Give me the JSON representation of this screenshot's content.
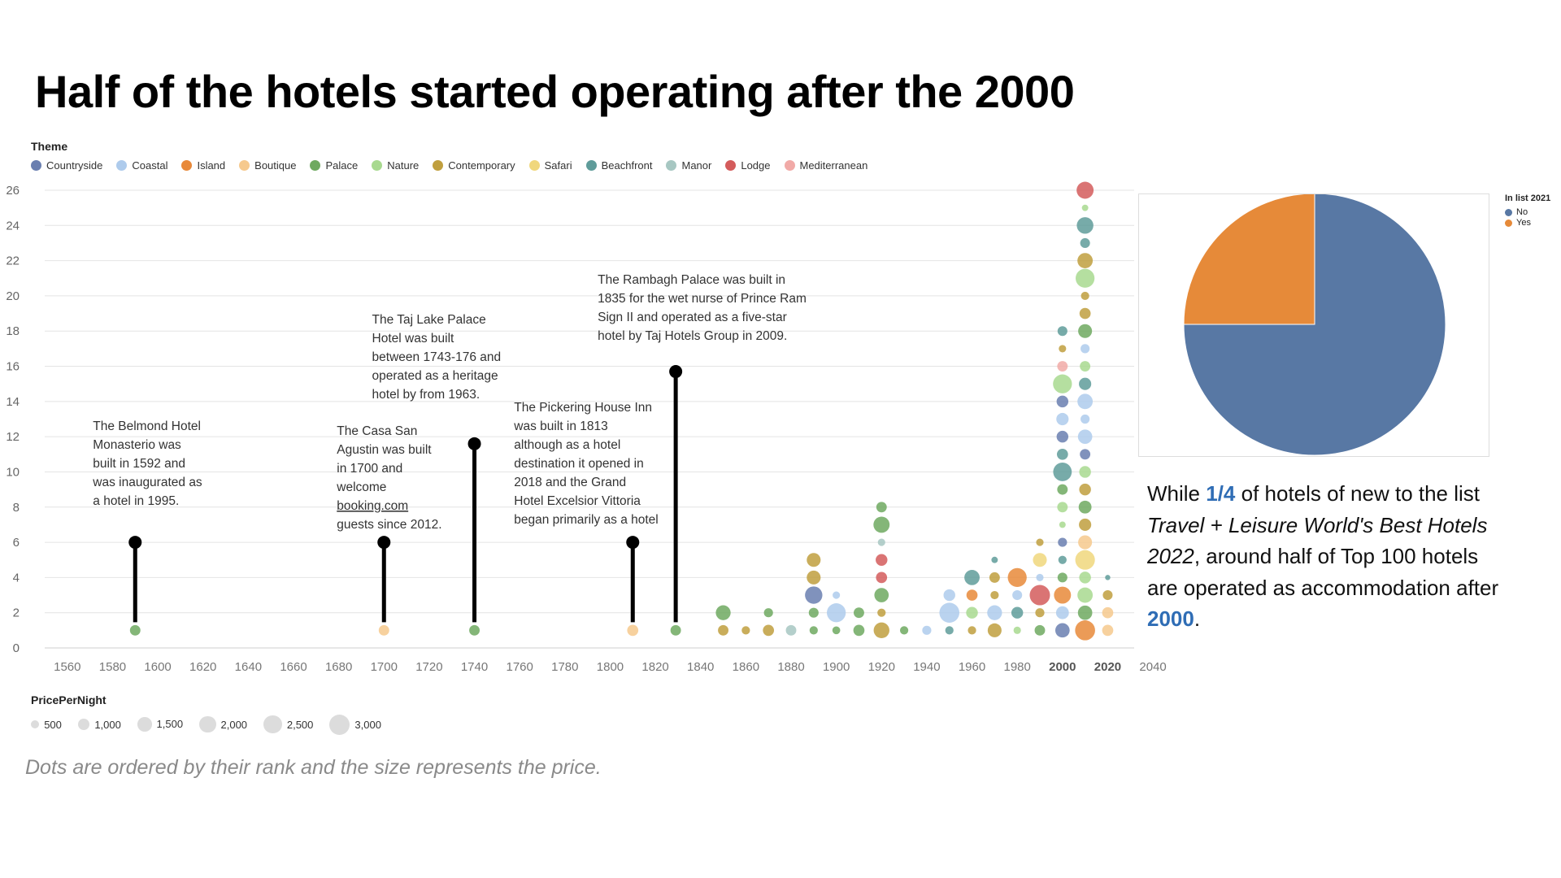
{
  "title": "Half of the hotels started operating after the 2000",
  "theme_legend": {
    "title": "Theme",
    "items": [
      {
        "label": "Countryside",
        "color": "#6a7fb0"
      },
      {
        "label": "Coastal",
        "color": "#aecbec"
      },
      {
        "label": "Island",
        "color": "#e8893a"
      },
      {
        "label": "Boutique",
        "color": "#f6c98d"
      },
      {
        "label": "Palace",
        "color": "#6fa960"
      },
      {
        "label": "Nature",
        "color": "#a8d98f"
      },
      {
        "label": "Contemporary",
        "color": "#c09f3e"
      },
      {
        "label": "Safari",
        "color": "#f0d77d"
      },
      {
        "label": "Beachfront",
        "color": "#5f9c9a"
      },
      {
        "label": "Manor",
        "color": "#a7c7c2"
      },
      {
        "label": "Lodge",
        "color": "#d45c5c"
      },
      {
        "label": "Mediterranean",
        "color": "#f1aaa7"
      }
    ]
  },
  "size_legend": {
    "title": "PricePerNight",
    "items": [
      "500",
      "1,000",
      "1,500",
      "2,000",
      "2,500",
      "3,000"
    ]
  },
  "chart_data": {
    "type": "scatter",
    "xlabel": "",
    "ylabel": "",
    "xlim": [
      1550,
      2045
    ],
    "ylim": [
      0,
      26
    ],
    "x_ticks": [
      "1560",
      "1580",
      "1600",
      "1620",
      "1640",
      "1660",
      "1680",
      "1700",
      "1720",
      "1740",
      "1760",
      "1780",
      "1800",
      "1820",
      "1840",
      "1860",
      "1880",
      "1900",
      "1920",
      "1940",
      "1960",
      "1980",
      "2000",
      "2020",
      "2040"
    ],
    "bold_ticks": [
      "2000",
      "2020"
    ],
    "y_ticks": [
      "0",
      "2",
      "4",
      "6",
      "8",
      "10",
      "12",
      "14",
      "16",
      "18",
      "20",
      "22",
      "24",
      "26"
    ],
    "grid": true,
    "annotations": [
      {
        "x": 1590,
        "y": 6,
        "lines": [
          "The Belmond Hotel",
          "Monasterio was",
          "built in 1592 and",
          "was inaugurated as",
          "a hotel in 1995."
        ]
      },
      {
        "x": 1700,
        "y": 6,
        "lines": [
          "The Casa San",
          "Agustin was built",
          "in 1700 and",
          "welcome",
          "booking.com",
          "guests since 2012."
        ],
        "underline_line": 4
      },
      {
        "x": 1740,
        "y": 11.6,
        "lines": [
          "The Taj Lake Palace",
          "Hotel was built",
          "between 1743-176 and",
          "operated as a heritage",
          "hotel by from 1963."
        ]
      },
      {
        "x": 1810,
        "y": 6,
        "lines": [
          "The Pickering House Inn",
          "was built in 1813",
          "although as a hotel",
          "destination it opened in",
          "2018 and the Grand",
          "Hotel Excelsior Vittoria",
          "began primarily as a hotel"
        ]
      },
      {
        "x": 1829,
        "y": 15.7,
        "lines": [
          "The Rambagh Palace was built in",
          "1835 for the wet nurse of Prince Ram",
          "Sign II and operated as a five-star",
          "hotel by Taj Hotels Group in 2009."
        ]
      }
    ],
    "points": [
      {
        "x": 1590,
        "y": 1,
        "theme": "Palace",
        "price": 800
      },
      {
        "x": 1700,
        "y": 1,
        "theme": "Boutique",
        "price": 800
      },
      {
        "x": 1740,
        "y": 1,
        "theme": "Palace",
        "price": 800
      },
      {
        "x": 1810,
        "y": 1,
        "theme": "Boutique",
        "price": 900
      },
      {
        "x": 1829,
        "y": 1,
        "theme": "Palace",
        "price": 800
      },
      {
        "x": 1850,
        "y": 1,
        "theme": "Contemporary",
        "price": 800
      },
      {
        "x": 1850,
        "y": 2,
        "theme": "Palace",
        "price": 1600
      },
      {
        "x": 1860,
        "y": 1,
        "theme": "Contemporary",
        "price": 500
      },
      {
        "x": 1870,
        "y": 1,
        "theme": "Contemporary",
        "price": 900
      },
      {
        "x": 1870,
        "y": 2,
        "theme": "Palace",
        "price": 600
      },
      {
        "x": 1880,
        "y": 1,
        "theme": "Manor",
        "price": 800
      },
      {
        "x": 1890,
        "y": 1,
        "theme": "Palace",
        "price": 500
      },
      {
        "x": 1890,
        "y": 2,
        "theme": "Palace",
        "price": 700
      },
      {
        "x": 1890,
        "y": 3,
        "theme": "Countryside",
        "price": 2200
      },
      {
        "x": 1890,
        "y": 4,
        "theme": "Contemporary",
        "price": 1400
      },
      {
        "x": 1890,
        "y": 5,
        "theme": "Contemporary",
        "price": 1400
      },
      {
        "x": 1900,
        "y": 1,
        "theme": "Palace",
        "price": 450
      },
      {
        "x": 1900,
        "y": 2,
        "theme": "Coastal",
        "price": 2600
      },
      {
        "x": 1900,
        "y": 3,
        "theme": "Coastal",
        "price": 400
      },
      {
        "x": 1910,
        "y": 1,
        "theme": "Palace",
        "price": 900
      },
      {
        "x": 1910,
        "y": 2,
        "theme": "Palace",
        "price": 800
      },
      {
        "x": 1920,
        "y": 1,
        "theme": "Contemporary",
        "price": 1800
      },
      {
        "x": 1920,
        "y": 2,
        "theme": "Contemporary",
        "price": 500
      },
      {
        "x": 1920,
        "y": 3,
        "theme": "Palace",
        "price": 1500
      },
      {
        "x": 1920,
        "y": 4,
        "theme": "Lodge",
        "price": 900
      },
      {
        "x": 1920,
        "y": 5,
        "theme": "Lodge",
        "price": 1000
      },
      {
        "x": 1920,
        "y": 6,
        "theme": "Manor",
        "price": 400
      },
      {
        "x": 1920,
        "y": 7,
        "theme": "Palace",
        "price": 1900
      },
      {
        "x": 1920,
        "y": 8,
        "theme": "Palace",
        "price": 800
      },
      {
        "x": 1930,
        "y": 1,
        "theme": "Palace",
        "price": 500
      },
      {
        "x": 1940,
        "y": 1,
        "theme": "Coastal",
        "price": 600
      },
      {
        "x": 1950,
        "y": 1,
        "theme": "Beachfront",
        "price": 500
      },
      {
        "x": 1950,
        "y": 2,
        "theme": "Coastal",
        "price": 2900
      },
      {
        "x": 1950,
        "y": 3,
        "theme": "Coastal",
        "price": 1000
      },
      {
        "x": 1960,
        "y": 1,
        "theme": "Contemporary",
        "price": 500
      },
      {
        "x": 1960,
        "y": 2,
        "theme": "Nature",
        "price": 1000
      },
      {
        "x": 1960,
        "y": 3,
        "theme": "Island",
        "price": 900
      },
      {
        "x": 1960,
        "y": 4,
        "theme": "Beachfront",
        "price": 1700
      },
      {
        "x": 1970,
        "y": 1,
        "theme": "Contemporary",
        "price": 1400
      },
      {
        "x": 1970,
        "y": 2,
        "theme": "Coastal",
        "price": 1600
      },
      {
        "x": 1970,
        "y": 3,
        "theme": "Contemporary",
        "price": 500
      },
      {
        "x": 1970,
        "y": 4,
        "theme": "Contemporary",
        "price": 800
      },
      {
        "x": 1970,
        "y": 5,
        "theme": "Beachfront",
        "price": 300
      },
      {
        "x": 1980,
        "y": 1,
        "theme": "Nature",
        "price": 400
      },
      {
        "x": 1980,
        "y": 2,
        "theme": "Beachfront",
        "price": 1000
      },
      {
        "x": 1980,
        "y": 3,
        "theme": "Coastal",
        "price": 700
      },
      {
        "x": 1980,
        "y": 4,
        "theme": "Island",
        "price": 2600
      },
      {
        "x": 1990,
        "y": 1,
        "theme": "Palace",
        "price": 800
      },
      {
        "x": 1990,
        "y": 2,
        "theme": "Contemporary",
        "price": 600
      },
      {
        "x": 1990,
        "y": 3,
        "theme": "Lodge",
        "price": 3000
      },
      {
        "x": 1990,
        "y": 4,
        "theme": "Coastal",
        "price": 400
      },
      {
        "x": 1990,
        "y": 5,
        "theme": "Safari",
        "price": 1400
      },
      {
        "x": 1990,
        "y": 6,
        "theme": "Contemporary",
        "price": 400
      },
      {
        "x": 2000,
        "y": 1,
        "theme": "Countryside",
        "price": 1500
      },
      {
        "x": 2000,
        "y": 2,
        "theme": "Coastal",
        "price": 1200
      },
      {
        "x": 2000,
        "y": 3,
        "theme": "Island",
        "price": 2100
      },
      {
        "x": 2000,
        "y": 4,
        "theme": "Palace",
        "price": 700
      },
      {
        "x": 2000,
        "y": 5,
        "theme": "Beachfront",
        "price": 500
      },
      {
        "x": 2000,
        "y": 6,
        "theme": "Countryside",
        "price": 600
      },
      {
        "x": 2000,
        "y": 7,
        "theme": "Nature",
        "price": 300
      },
      {
        "x": 2000,
        "y": 8,
        "theme": "Nature",
        "price": 800
      },
      {
        "x": 2000,
        "y": 9,
        "theme": "Palace",
        "price": 800
      },
      {
        "x": 2000,
        "y": 10,
        "theme": "Beachfront",
        "price": 2500
      },
      {
        "x": 2000,
        "y": 11,
        "theme": "Beachfront",
        "price": 900
      },
      {
        "x": 2000,
        "y": 12,
        "theme": "Countryside",
        "price": 1000
      },
      {
        "x": 2000,
        "y": 13,
        "theme": "Coastal",
        "price": 1100
      },
      {
        "x": 2000,
        "y": 14,
        "theme": "Countryside",
        "price": 1000
      },
      {
        "x": 2000,
        "y": 15,
        "theme": "Nature",
        "price": 2600
      },
      {
        "x": 2000,
        "y": 16,
        "theme": "Mediterranean",
        "price": 800
      },
      {
        "x": 2000,
        "y": 17,
        "theme": "Contemporary",
        "price": 400
      },
      {
        "x": 2000,
        "y": 18,
        "theme": "Beachfront",
        "price": 700
      },
      {
        "x": 2010,
        "y": 1,
        "theme": "Island",
        "price": 2900
      },
      {
        "x": 2010,
        "y": 2,
        "theme": "Palace",
        "price": 1500
      },
      {
        "x": 2010,
        "y": 3,
        "theme": "Nature",
        "price": 1700
      },
      {
        "x": 2010,
        "y": 4,
        "theme": "Nature",
        "price": 1000
      },
      {
        "x": 2010,
        "y": 5,
        "theme": "Safari",
        "price": 2800
      },
      {
        "x": 2010,
        "y": 6,
        "theme": "Boutique",
        "price": 1400
      },
      {
        "x": 2010,
        "y": 7,
        "theme": "Contemporary",
        "price": 1100
      },
      {
        "x": 2010,
        "y": 8,
        "theme": "Palace",
        "price": 1200
      },
      {
        "x": 2010,
        "y": 9,
        "theme": "Contemporary",
        "price": 1000
      },
      {
        "x": 2010,
        "y": 10,
        "theme": "Nature",
        "price": 1000
      },
      {
        "x": 2010,
        "y": 11,
        "theme": "Countryside",
        "price": 800
      },
      {
        "x": 2010,
        "y": 12,
        "theme": "Coastal",
        "price": 1500
      },
      {
        "x": 2010,
        "y": 13,
        "theme": "Coastal",
        "price": 600
      },
      {
        "x": 2010,
        "y": 14,
        "theme": "Coastal",
        "price": 1700
      },
      {
        "x": 2010,
        "y": 15,
        "theme": "Beachfront",
        "price": 1100
      },
      {
        "x": 2010,
        "y": 16,
        "theme": "Nature",
        "price": 800
      },
      {
        "x": 2010,
        "y": 17,
        "theme": "Coastal",
        "price": 600
      },
      {
        "x": 2010,
        "y": 18,
        "theme": "Palace",
        "price": 1400
      },
      {
        "x": 2010,
        "y": 19,
        "theme": "Contemporary",
        "price": 900
      },
      {
        "x": 2010,
        "y": 20,
        "theme": "Contemporary",
        "price": 500
      },
      {
        "x": 2010,
        "y": 21,
        "theme": "Nature",
        "price": 2600
      },
      {
        "x": 2010,
        "y": 22,
        "theme": "Contemporary",
        "price": 1700
      },
      {
        "x": 2010,
        "y": 23,
        "theme": "Beachfront",
        "price": 700
      },
      {
        "x": 2010,
        "y": 24,
        "theme": "Beachfront",
        "price": 2000
      },
      {
        "x": 2010,
        "y": 25,
        "theme": "Nature",
        "price": 300
      },
      {
        "x": 2010,
        "y": 26,
        "theme": "Lodge",
        "price": 2100
      },
      {
        "x": 2020,
        "y": 1,
        "theme": "Boutique",
        "price": 900
      },
      {
        "x": 2020,
        "y": 2,
        "theme": "Boutique",
        "price": 900
      },
      {
        "x": 2020,
        "y": 3,
        "theme": "Contemporary",
        "price": 700
      },
      {
        "x": 2020,
        "y": 4,
        "theme": "Beachfront",
        "price": 200
      }
    ]
  },
  "pie": {
    "type": "pie",
    "legend_title": "In list 2021",
    "slices": [
      {
        "label": "No",
        "value": 75,
        "color": "#5878a4"
      },
      {
        "label": "Yes",
        "value": 25,
        "color": "#e68a39"
      }
    ]
  },
  "side_text": {
    "p1": "While ",
    "highlight1": "1/4",
    "p2": " of hotels of new to the list ",
    "italic": "Travel + Leisure World's Best Hotels 2022",
    "p3": ", around half of Top 100 hotels are operated as accommodation after ",
    "highlight2": "2000",
    "p4": "."
  },
  "caption": "Dots are ordered by their rank and the size represents the price."
}
